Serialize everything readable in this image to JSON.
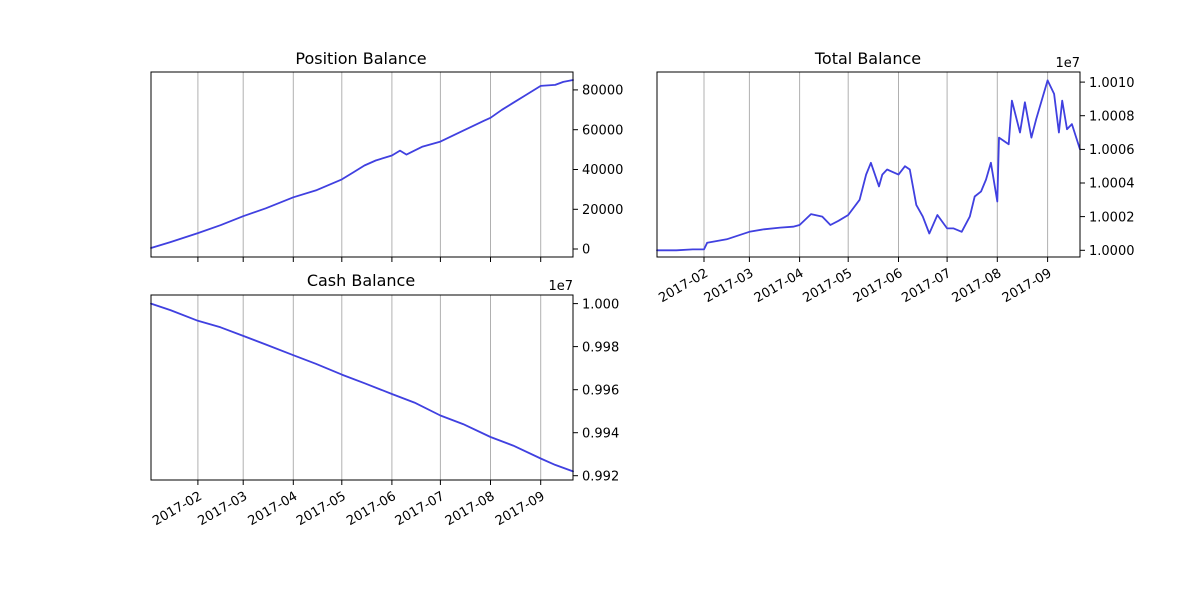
{
  "chart_data": [
    {
      "id": "position",
      "type": "line",
      "title": "Position Balance",
      "xlabel": "",
      "ylabel": "",
      "x_type": "date",
      "xlim": [
        "2017-01-03",
        "2017-09-21"
      ],
      "ylim": [
        -4000,
        89000
      ],
      "yticks": [
        0,
        20000,
        40000,
        60000,
        80000
      ],
      "ytick_labels": [
        "0",
        "20000",
        "40000",
        "60000",
        "80000"
      ],
      "offset_text": "",
      "xtick_dates": [
        "2017-02-01",
        "2017-03-01",
        "2017-04-01",
        "2017-05-01",
        "2017-06-01",
        "2017-07-01",
        "2017-08-01",
        "2017-09-01"
      ],
      "xtick_labels": [
        "",
        "",
        "",
        "",
        "",
        "",
        "",
        ""
      ],
      "grid": "x",
      "yaxis_side": "right",
      "color": "#4040e0",
      "series": [
        {
          "x": [
            "2017-01-03",
            "2017-01-15",
            "2017-02-01",
            "2017-02-15",
            "2017-03-01",
            "2017-03-15",
            "2017-04-01",
            "2017-04-15",
            "2017-05-01",
            "2017-05-08",
            "2017-05-15",
            "2017-05-22",
            "2017-06-01",
            "2017-06-06",
            "2017-06-10",
            "2017-06-15",
            "2017-06-20",
            "2017-07-01",
            "2017-07-15",
            "2017-07-28",
            "2017-08-01",
            "2017-08-08",
            "2017-08-15",
            "2017-08-22",
            "2017-09-01",
            "2017-09-10",
            "2017-09-15",
            "2017-09-21"
          ],
          "y": [
            500,
            3500,
            8000,
            12000,
            16500,
            20500,
            26000,
            29500,
            35000,
            38500,
            42000,
            44500,
            47000,
            49500,
            47500,
            49500,
            51500,
            54000,
            59500,
            64500,
            66000,
            70000,
            73500,
            77000,
            82000,
            82500,
            84000,
            85000
          ]
        }
      ]
    },
    {
      "id": "total",
      "type": "line",
      "title": "Total Balance",
      "xlabel": "",
      "ylabel": "",
      "x_type": "date",
      "xlim": [
        "2017-01-03",
        "2017-09-21"
      ],
      "ylim": [
        9999600,
        10010600
      ],
      "yticks": [
        10000000,
        10002000,
        10004000,
        10006000,
        10008000,
        10010000
      ],
      "ytick_labels": [
        "1.0000",
        "1.0002",
        "1.0004",
        "1.0006",
        "1.0008",
        "1.0010"
      ],
      "offset_text": "1e7",
      "xtick_dates": [
        "2017-02-01",
        "2017-03-01",
        "2017-04-01",
        "2017-05-01",
        "2017-06-01",
        "2017-07-01",
        "2017-08-01",
        "2017-09-01"
      ],
      "xtick_labels": [
        "2017-02",
        "2017-03",
        "2017-04",
        "2017-05",
        "2017-06",
        "2017-07",
        "2017-08",
        "2017-09"
      ],
      "grid": "x",
      "yaxis_side": "right",
      "color": "#4040e0",
      "series": [
        {
          "x": [
            "2017-01-03",
            "2017-01-15",
            "2017-01-25",
            "2017-02-01",
            "2017-02-03",
            "2017-02-15",
            "2017-03-01",
            "2017-03-10",
            "2017-03-20",
            "2017-03-28",
            "2017-04-01",
            "2017-04-08",
            "2017-04-15",
            "2017-04-20",
            "2017-04-25",
            "2017-05-01",
            "2017-05-08",
            "2017-05-12",
            "2017-05-15",
            "2017-05-20",
            "2017-05-22",
            "2017-05-25",
            "2017-06-01",
            "2017-06-05",
            "2017-06-08",
            "2017-06-12",
            "2017-06-16",
            "2017-06-20",
            "2017-06-25",
            "2017-07-01",
            "2017-07-05",
            "2017-07-10",
            "2017-07-15",
            "2017-07-18",
            "2017-07-22",
            "2017-07-25",
            "2017-07-28",
            "2017-08-01",
            "2017-08-02",
            "2017-08-08",
            "2017-08-10",
            "2017-08-15",
            "2017-08-18",
            "2017-08-22",
            "2017-08-25",
            "2017-09-01",
            "2017-09-05",
            "2017-09-08",
            "2017-09-10",
            "2017-09-13",
            "2017-09-16",
            "2017-09-21"
          ],
          "y": [
            10000000,
            10000000,
            10000050,
            10000050,
            10000450,
            10000650,
            10001100,
            10001250,
            10001350,
            10001400,
            10001500,
            10002150,
            10002000,
            10001500,
            10001750,
            10002100,
            10003000,
            10004500,
            10005200,
            10003800,
            10004500,
            10004800,
            10004500,
            10005000,
            10004800,
            10002700,
            10002000,
            10001000,
            10002100,
            10001300,
            10001300,
            10001100,
            10002000,
            10003200,
            10003500,
            10004200,
            10005200,
            10002900,
            10006700,
            10006300,
            10008900,
            10007000,
            10008800,
            10006700,
            10007800,
            10010100,
            10009300,
            10007000,
            10008900,
            10007200,
            10007500,
            10006000
          ]
        }
      ]
    },
    {
      "id": "cash",
      "type": "line",
      "title": "Cash Balance",
      "xlabel": "",
      "ylabel": "",
      "x_type": "date",
      "xlim": [
        "2017-01-03",
        "2017-09-21"
      ],
      "ylim": [
        9991800,
        10000400
      ],
      "yticks": [
        9992000,
        9994000,
        9996000,
        9998000,
        10000000
      ],
      "ytick_labels": [
        "0.992",
        "0.994",
        "0.996",
        "0.998",
        "1.000"
      ],
      "offset_text": "1e7",
      "xtick_dates": [
        "2017-02-01",
        "2017-03-01",
        "2017-04-01",
        "2017-05-01",
        "2017-06-01",
        "2017-07-01",
        "2017-08-01",
        "2017-09-01"
      ],
      "xtick_labels": [
        "2017-02",
        "2017-03",
        "2017-04",
        "2017-05",
        "2017-06",
        "2017-07",
        "2017-08",
        "2017-09"
      ],
      "grid": "x",
      "yaxis_side": "right",
      "color": "#4040e0",
      "series": [
        {
          "x": [
            "2017-01-03",
            "2017-01-15",
            "2017-02-01",
            "2017-02-15",
            "2017-03-01",
            "2017-03-15",
            "2017-04-01",
            "2017-04-15",
            "2017-05-01",
            "2017-05-15",
            "2017-06-01",
            "2017-06-15",
            "2017-07-01",
            "2017-07-15",
            "2017-08-01",
            "2017-08-15",
            "2017-09-01",
            "2017-09-10",
            "2017-09-21"
          ],
          "y": [
            10000000,
            9999700,
            9999200,
            9998900,
            9998500,
            9998100,
            9997600,
            9997200,
            9996700,
            9996300,
            9995800,
            9995400,
            9994800,
            9994400,
            9993800,
            9993400,
            9992800,
            9992500,
            9992200
          ]
        }
      ]
    }
  ]
}
